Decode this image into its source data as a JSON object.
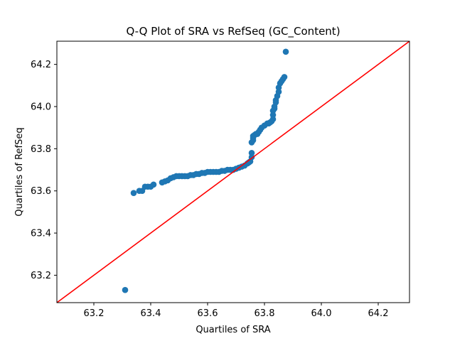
{
  "chart_data": {
    "type": "scatter",
    "title": "Q-Q Plot of SRA vs RefSeq (GC_Content)",
    "xlabel": "Quartiles of SRA",
    "ylabel": "Quartiles of RefSeq",
    "xlim": [
      63.07,
      64.31
    ],
    "ylim": [
      63.07,
      64.31
    ],
    "xticks": [
      63.2,
      63.4,
      63.6,
      63.8,
      64.0,
      64.2
    ],
    "yticks": [
      63.2,
      63.4,
      63.6,
      63.8,
      64.0,
      64.2
    ],
    "grid": false,
    "legend": "none",
    "colors": {
      "points": "#1f77b4",
      "reference_line": "#ff0000"
    },
    "reference_line": {
      "from": [
        63.07,
        63.07
      ],
      "to": [
        64.31,
        64.31
      ]
    },
    "series": [
      {
        "x": [
          63.31,
          63.34,
          63.36,
          63.37,
          63.38,
          63.39,
          63.4,
          63.41,
          63.44,
          63.45,
          63.46,
          63.47,
          63.48,
          63.49,
          63.5,
          63.51,
          63.52,
          63.53,
          63.54,
          63.55,
          63.56,
          63.57,
          63.58,
          63.59,
          63.6,
          63.61,
          63.62,
          63.63,
          63.64,
          63.65,
          63.66,
          63.67,
          63.68,
          63.69,
          63.7,
          63.71,
          63.72,
          63.73,
          63.74,
          63.745,
          63.75,
          63.755,
          63.755,
          63.755,
          63.76,
          63.76,
          63.76,
          63.765,
          63.77,
          63.775,
          63.78,
          63.785,
          63.79,
          63.8,
          63.81,
          63.815,
          63.82,
          63.825,
          63.83,
          63.83,
          63.83,
          63.835,
          63.835,
          63.84,
          63.84,
          63.845,
          63.85,
          63.85,
          63.855,
          63.86,
          63.865,
          63.87,
          63.875
        ],
        "y": [
          63.13,
          63.59,
          63.6,
          63.6,
          63.62,
          63.62,
          63.62,
          63.63,
          63.64,
          63.645,
          63.65,
          63.66,
          63.665,
          63.67,
          63.67,
          63.67,
          63.67,
          63.67,
          63.675,
          63.675,
          63.68,
          63.68,
          63.685,
          63.685,
          63.69,
          63.69,
          63.69,
          63.69,
          63.69,
          63.695,
          63.695,
          63.7,
          63.7,
          63.7,
          63.705,
          63.71,
          63.715,
          63.72,
          63.73,
          63.735,
          63.74,
          63.76,
          63.78,
          63.83,
          63.84,
          63.85,
          63.86,
          63.865,
          63.87,
          63.87,
          63.88,
          63.89,
          63.9,
          63.91,
          63.92,
          63.92,
          63.925,
          63.93,
          63.94,
          63.96,
          63.98,
          63.99,
          64.0,
          64.02,
          64.03,
          64.05,
          64.07,
          64.09,
          64.11,
          64.12,
          64.13,
          64.14,
          64.26
        ]
      }
    ]
  }
}
